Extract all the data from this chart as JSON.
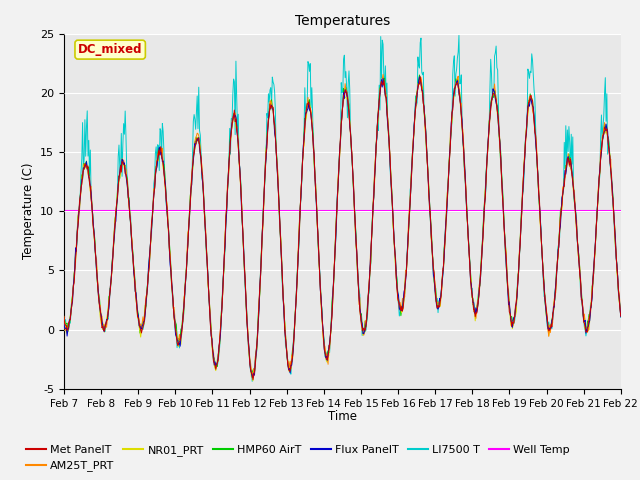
{
  "title": "Temperatures",
  "xlabel": "Time",
  "ylabel": "Temperature (C)",
  "ylim": [
    -5,
    25
  ],
  "yticks": [
    -5,
    0,
    5,
    10,
    15,
    20,
    25
  ],
  "xtick_labels": [
    "Feb 7",
    "Feb 8",
    "Feb 9",
    "Feb 10",
    "Feb 11",
    "Feb 12",
    "Feb 13",
    "Feb 14",
    "Feb 15",
    "Feb 16",
    "Feb 17",
    "Feb 18",
    "Feb 19",
    "Feb 20",
    "Feb 21",
    "Feb 22"
  ],
  "series_colors": {
    "Met PanelT": "#cc0000",
    "AM25T_PRT": "#ff8800",
    "NR01_PRT": "#dddd00",
    "HMP60 AirT": "#00cc00",
    "Flux PanelT": "#0000cc",
    "LI7500 T": "#00cccc",
    "Well Temp": "#ff00ff"
  },
  "annotation_text": "DC_mixed",
  "annotation_color": "#cc0000",
  "annotation_bg": "#ffffcc",
  "annotation_border": "#cccc00",
  "well_temp_value": 10.0,
  "plot_bg": "#e8e8e8",
  "fig_bg": "#f2f2f2",
  "seed": 42
}
